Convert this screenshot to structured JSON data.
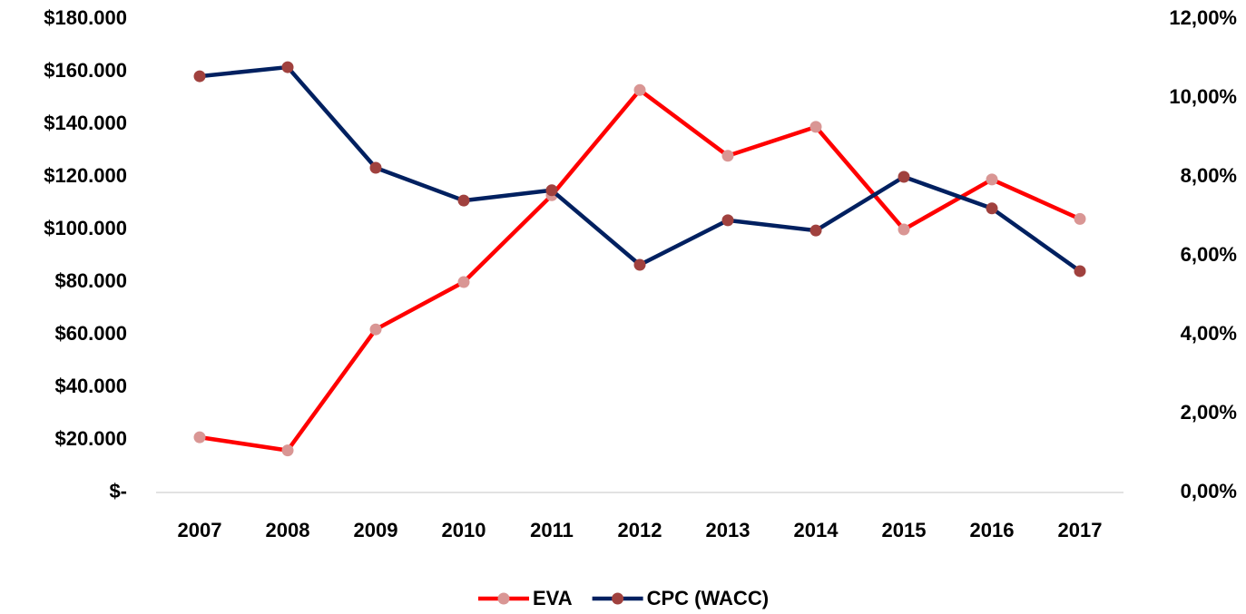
{
  "chart_data": {
    "type": "line",
    "categories": [
      "2007",
      "2008",
      "2009",
      "2010",
      "2011",
      "2012",
      "2013",
      "2014",
      "2015",
      "2016",
      "2017"
    ],
    "series": [
      {
        "name": "EVA",
        "color": "#ff0000",
        "marker_color": "#d99694",
        "values": [
          21000,
          16000,
          62000,
          80000,
          113000,
          153000,
          128000,
          139000,
          100000,
          119000,
          104000
        ]
      },
      {
        "name": "CPC (WACC)",
        "color": "#002060",
        "marker_color": "#a0413e",
        "axis": "y2",
        "values": [
          10.55,
          10.78,
          8.23,
          7.4,
          7.66,
          5.77,
          6.9,
          6.64,
          8.0,
          7.2,
          5.61
        ]
      }
    ],
    "ylim": [
      0,
      180000
    ],
    "yticks": [
      {
        "value": 0,
        "label": "$-"
      },
      {
        "value": 20000,
        "label": "$20.000"
      },
      {
        "value": 40000,
        "label": "$40.000"
      },
      {
        "value": 60000,
        "label": "$60.000"
      },
      {
        "value": 80000,
        "label": "$80.000"
      },
      {
        "value": 100000,
        "label": "$100.000"
      },
      {
        "value": 120000,
        "label": "$120.000"
      },
      {
        "value": 140000,
        "label": "$140.000"
      },
      {
        "value": 160000,
        "label": "$160.000"
      },
      {
        "value": 180000,
        "label": "$180.000"
      }
    ],
    "y2lim": [
      0,
      12
    ],
    "y2ticks": [
      {
        "value": 0,
        "label": "0,00%"
      },
      {
        "value": 2,
        "label": "2,00%"
      },
      {
        "value": 4,
        "label": "4,00%"
      },
      {
        "value": 6,
        "label": "6,00%"
      },
      {
        "value": 8,
        "label": "8,00%"
      },
      {
        "value": 10,
        "label": "10,00%"
      },
      {
        "value": 12,
        "label": "12,00%"
      }
    ],
    "legend": "bottom",
    "grid": false
  }
}
